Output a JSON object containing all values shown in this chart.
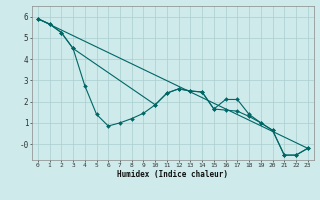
{
  "background_color": "#ceeaea",
  "grid_color": "#aacece",
  "line_color": "#006666",
  "marker_color": "#006666",
  "xlabel": "Humidex (Indice chaleur)",
  "xlim": [
    -0.5,
    23.5
  ],
  "ylim": [
    -0.75,
    6.5
  ],
  "xticks": [
    0,
    1,
    2,
    3,
    4,
    5,
    6,
    7,
    8,
    9,
    10,
    11,
    12,
    13,
    14,
    15,
    16,
    17,
    18,
    19,
    20,
    21,
    22,
    23
  ],
  "yticks": [
    0,
    1,
    2,
    3,
    4,
    5,
    6
  ],
  "ytick_labels": [
    "-0",
    "1",
    "2",
    "3",
    "4",
    "5",
    "6"
  ],
  "series1_x": [
    0,
    1,
    2,
    3,
    4,
    5,
    6,
    7,
    8,
    9,
    10,
    11,
    12,
    13,
    14,
    15,
    16,
    17,
    18,
    19,
    20,
    21,
    22,
    23
  ],
  "series1_y": [
    5.9,
    5.65,
    5.25,
    4.5,
    2.75,
    1.4,
    0.85,
    1.0,
    1.2,
    1.45,
    1.85,
    2.4,
    2.6,
    2.5,
    2.45,
    1.65,
    1.6,
    1.55,
    1.3,
    1.0,
    0.65,
    -0.52,
    -0.52,
    -0.2
  ],
  "series2_x": [
    0,
    1,
    2,
    3,
    10,
    11,
    12,
    13,
    14,
    15,
    16,
    17,
    18,
    19,
    20,
    21,
    22,
    23
  ],
  "series2_y": [
    5.9,
    5.65,
    5.25,
    4.5,
    1.85,
    2.4,
    2.6,
    2.5,
    2.45,
    1.65,
    2.1,
    2.1,
    1.4,
    1.0,
    0.65,
    -0.52,
    -0.52,
    -0.2
  ],
  "series3_x": [
    0,
    23
  ],
  "series3_y": [
    5.9,
    -0.2
  ]
}
